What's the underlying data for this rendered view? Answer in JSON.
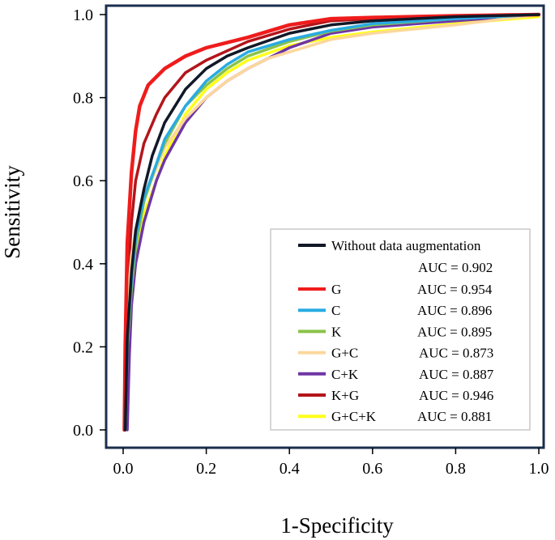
{
  "chart_data": {
    "type": "line",
    "title": "",
    "xlabel": "1-Specificity",
    "ylabel": "Sensitivity",
    "xlim": [
      0.0,
      1.0
    ],
    "ylim": [
      0.0,
      1.0
    ],
    "xticks": [
      "0.0",
      "0.2",
      "0.4",
      "0.6",
      "0.8",
      "1.0"
    ],
    "yticks": [
      "0.0",
      "0.2",
      "0.4",
      "0.6",
      "0.8",
      "1.0"
    ],
    "xtick_values": [
      0.0,
      0.2,
      0.4,
      0.6,
      0.8,
      1.0
    ],
    "ytick_values": [
      0.0,
      0.2,
      0.4,
      0.6,
      0.8,
      1.0
    ],
    "grid": false,
    "legend_position": "bottom-right",
    "series": [
      {
        "name": "Without data augmentation",
        "auc": "AUC = 0.902",
        "color": "#111827",
        "x": [
          0.005,
          0.01,
          0.02,
          0.03,
          0.05,
          0.07,
          0.1,
          0.15,
          0.2,
          0.25,
          0.3,
          0.4,
          0.5,
          0.6,
          0.8,
          1.0
        ],
        "y": [
          0.0,
          0.22,
          0.38,
          0.48,
          0.58,
          0.66,
          0.74,
          0.82,
          0.87,
          0.9,
          0.92,
          0.955,
          0.975,
          0.985,
          0.995,
          1.0
        ]
      },
      {
        "name": "G",
        "auc": "AUC = 0.954",
        "color": "#ef1c1c",
        "x": [
          0.003,
          0.005,
          0.01,
          0.02,
          0.03,
          0.04,
          0.06,
          0.08,
          0.1,
          0.15,
          0.2,
          0.3,
          0.4,
          0.5,
          0.6,
          0.8,
          1.0
        ],
        "y": [
          0.0,
          0.2,
          0.45,
          0.62,
          0.72,
          0.78,
          0.83,
          0.85,
          0.87,
          0.9,
          0.92,
          0.945,
          0.975,
          0.99,
          0.993,
          0.997,
          1.0
        ]
      },
      {
        "name": "C",
        "auc": "AUC = 0.896",
        "color": "#29abe2",
        "x": [
          0.005,
          0.01,
          0.02,
          0.03,
          0.05,
          0.08,
          0.1,
          0.15,
          0.2,
          0.25,
          0.3,
          0.4,
          0.5,
          0.6,
          0.8,
          1.0
        ],
        "y": [
          0.0,
          0.22,
          0.36,
          0.46,
          0.56,
          0.64,
          0.7,
          0.78,
          0.84,
          0.88,
          0.91,
          0.94,
          0.962,
          0.978,
          0.99,
          1.0
        ]
      },
      {
        "name": "K",
        "auc": "AUC = 0.895",
        "color": "#8bc34a",
        "x": [
          0.005,
          0.01,
          0.02,
          0.03,
          0.05,
          0.08,
          0.1,
          0.15,
          0.2,
          0.25,
          0.3,
          0.4,
          0.5,
          0.6,
          0.8,
          1.0
        ],
        "y": [
          0.0,
          0.2,
          0.34,
          0.44,
          0.55,
          0.64,
          0.69,
          0.78,
          0.83,
          0.87,
          0.9,
          0.935,
          0.96,
          0.975,
          0.99,
          1.0
        ]
      },
      {
        "name": "G+C",
        "auc": "AUC = 0.873",
        "color": "#fcd79c",
        "x": [
          0.005,
          0.01,
          0.02,
          0.03,
          0.05,
          0.08,
          0.1,
          0.15,
          0.2,
          0.25,
          0.3,
          0.35,
          0.4,
          0.45,
          0.5,
          0.6,
          0.8,
          1.0
        ],
        "y": [
          0.0,
          0.3,
          0.42,
          0.48,
          0.56,
          0.63,
          0.68,
          0.75,
          0.8,
          0.84,
          0.87,
          0.895,
          0.91,
          0.925,
          0.94,
          0.955,
          0.975,
          1.0
        ]
      },
      {
        "name": "C+K",
        "auc": "AUC = 0.887",
        "color": "#6f35a5",
        "x": [
          0.01,
          0.015,
          0.02,
          0.03,
          0.05,
          0.08,
          0.1,
          0.15,
          0.2,
          0.25,
          0.3,
          0.4,
          0.5,
          0.6,
          0.8,
          1.0
        ],
        "y": [
          0.0,
          0.18,
          0.3,
          0.4,
          0.5,
          0.6,
          0.65,
          0.74,
          0.8,
          0.84,
          0.87,
          0.92,
          0.955,
          0.97,
          0.985,
          1.0
        ]
      },
      {
        "name": "K+G",
        "auc": "AUC = 0.946",
        "color": "#b3151b",
        "x": [
          0.003,
          0.005,
          0.01,
          0.02,
          0.03,
          0.05,
          0.08,
          0.1,
          0.15,
          0.2,
          0.3,
          0.4,
          0.5,
          0.6,
          0.8,
          1.0
        ],
        "y": [
          0.0,
          0.18,
          0.34,
          0.5,
          0.6,
          0.69,
          0.76,
          0.8,
          0.86,
          0.89,
          0.935,
          0.965,
          0.985,
          0.99,
          0.995,
          1.0
        ]
      },
      {
        "name": "G+C+K",
        "auc": "AUC = 0.881",
        "color": "#ffff1a",
        "x": [
          0.005,
          0.01,
          0.02,
          0.03,
          0.05,
          0.08,
          0.1,
          0.15,
          0.2,
          0.25,
          0.3,
          0.4,
          0.5,
          0.6,
          0.7,
          0.8,
          1.0
        ],
        "y": [
          0.0,
          0.18,
          0.32,
          0.42,
          0.52,
          0.6,
          0.66,
          0.76,
          0.82,
          0.86,
          0.89,
          0.925,
          0.945,
          0.958,
          0.968,
          0.978,
          0.995
        ]
      }
    ]
  }
}
